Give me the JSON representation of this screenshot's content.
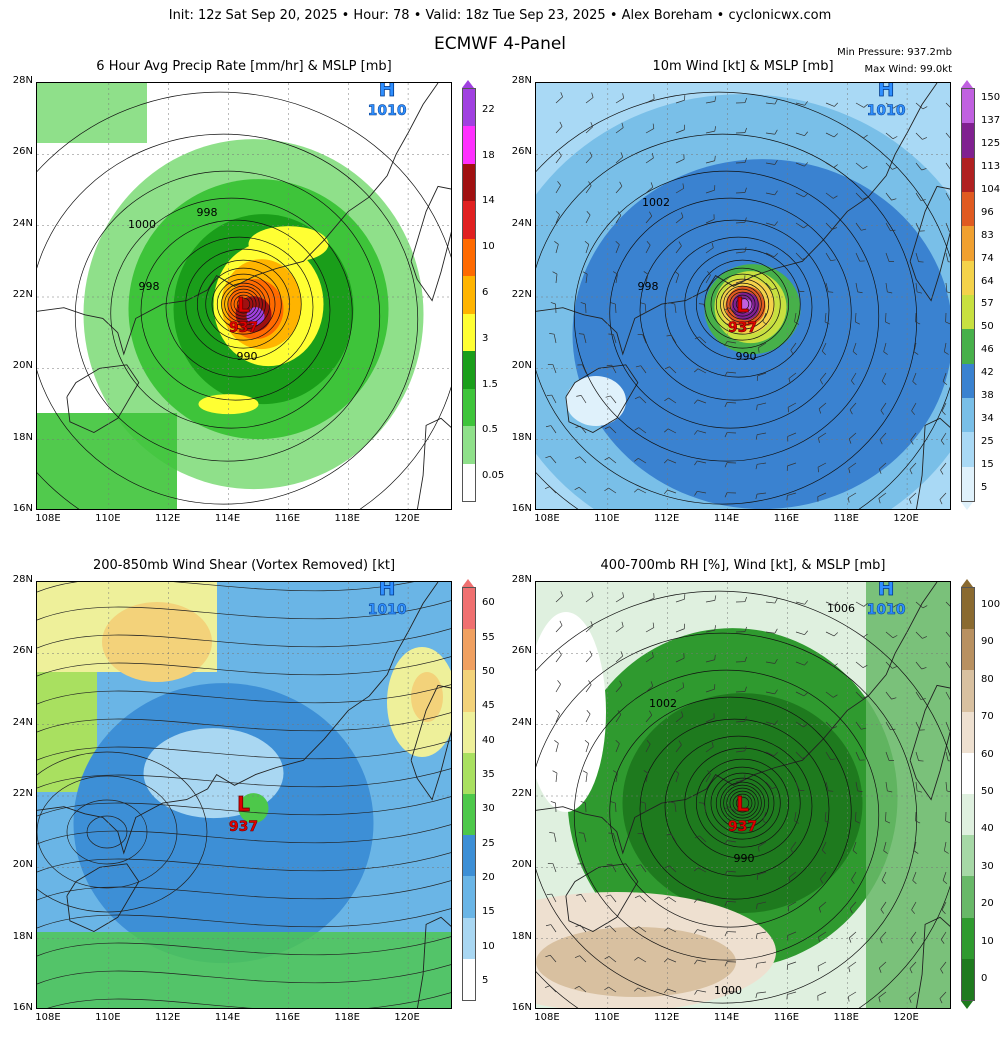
{
  "header": {
    "init_line": "Init: 12z Sat Sep 20, 2025 • Hour: 78 • Valid: 18z Tue Sep 23, 2025 • Alex Boreham • cyclonicwx.com",
    "title": "ECMWF 4-Panel",
    "min_pressure": "Min Pressure: 937.2mb",
    "max_wind": "Max Wind: 99.0kt"
  },
  "axes": {
    "lat_labels": [
      "28N",
      "26N",
      "24N",
      "22N",
      "20N",
      "18N",
      "16N"
    ],
    "lon_labels": [
      "108E",
      "110E",
      "112E",
      "114E",
      "116E",
      "118E",
      "120E"
    ]
  },
  "panels": [
    {
      "title": "6 Hour Avg Precip Rate [mm/hr] & MSLP [mb]",
      "colorbar_labels": [
        "22",
        "18",
        "14",
        "10",
        "6",
        "3",
        "1.5",
        "0.5",
        "0.05"
      ],
      "colors": [
        "#ffffff",
        "#8fe08a",
        "#3ec43a",
        "#1a9e1a",
        "#ffff33",
        "#ffb400",
        "#ff6a00",
        "#e02020",
        "#a01010",
        "#ff30ff",
        "#a040e0"
      ],
      "pressure_labels": [
        "1000",
        "998",
        "998",
        "990",
        "1010"
      ],
      "low_center": "937",
      "low_letter": "L",
      "high_letter": "H",
      "high_value": "1010"
    },
    {
      "title": "10m Wind [kt] & MSLP [mb]",
      "colorbar_labels": [
        "150",
        "137",
        "125",
        "113",
        "104",
        "96",
        "83",
        "74",
        "64",
        "57",
        "50",
        "46",
        "42",
        "38",
        "34",
        "25",
        "15",
        "5"
      ],
      "colors": [
        "#dff1fb",
        "#a9d9f5",
        "#79bfe8",
        "#3a82d0",
        "#47b04a",
        "#c8e040",
        "#f4d24a",
        "#f0a030",
        "#e05a20",
        "#b02020",
        "#802090",
        "#c060e0"
      ],
      "pressure_labels": [
        "1002",
        "998",
        "990",
        "1010"
      ],
      "low_center": "937",
      "low_letter": "L",
      "high_letter": "H",
      "high_value": "1010"
    },
    {
      "title": "200-850mb Wind Shear (Vortex Removed) [kt]",
      "colorbar_labels": [
        "60",
        "55",
        "50",
        "45",
        "40",
        "35",
        "30",
        "25",
        "20",
        "15",
        "10",
        "5"
      ],
      "colors": [
        "#ffffff",
        "#a9d7f2",
        "#6ab5e6",
        "#3d8fd6",
        "#4dc84a",
        "#a9e060",
        "#eef09a",
        "#f3d27a",
        "#f0a060",
        "#f07070"
      ],
      "low_center": "937",
      "low_letter": "L",
      "high_letter": "H",
      "high_value": "1010"
    },
    {
      "title": "400-700mb RH [%], Wind [kt], & MSLP [mb]",
      "colorbar_labels": [
        "100",
        "90",
        "80",
        "70",
        "60",
        "50",
        "40",
        "30",
        "20",
        "10",
        "0"
      ],
      "colors": [
        "#1e7a1e",
        "#2f9a2f",
        "#68b868",
        "#a6d8a6",
        "#dff0df",
        "#ffffff",
        "#eee0d0",
        "#d8c0a0",
        "#b89060",
        "#8a6a30"
      ],
      "pressure_labels": [
        "1006",
        "1002",
        "990",
        "1000"
      ],
      "low_center": "937",
      "low_letter": "L",
      "high_letter": "H",
      "high_value": "1010"
    }
  ]
}
